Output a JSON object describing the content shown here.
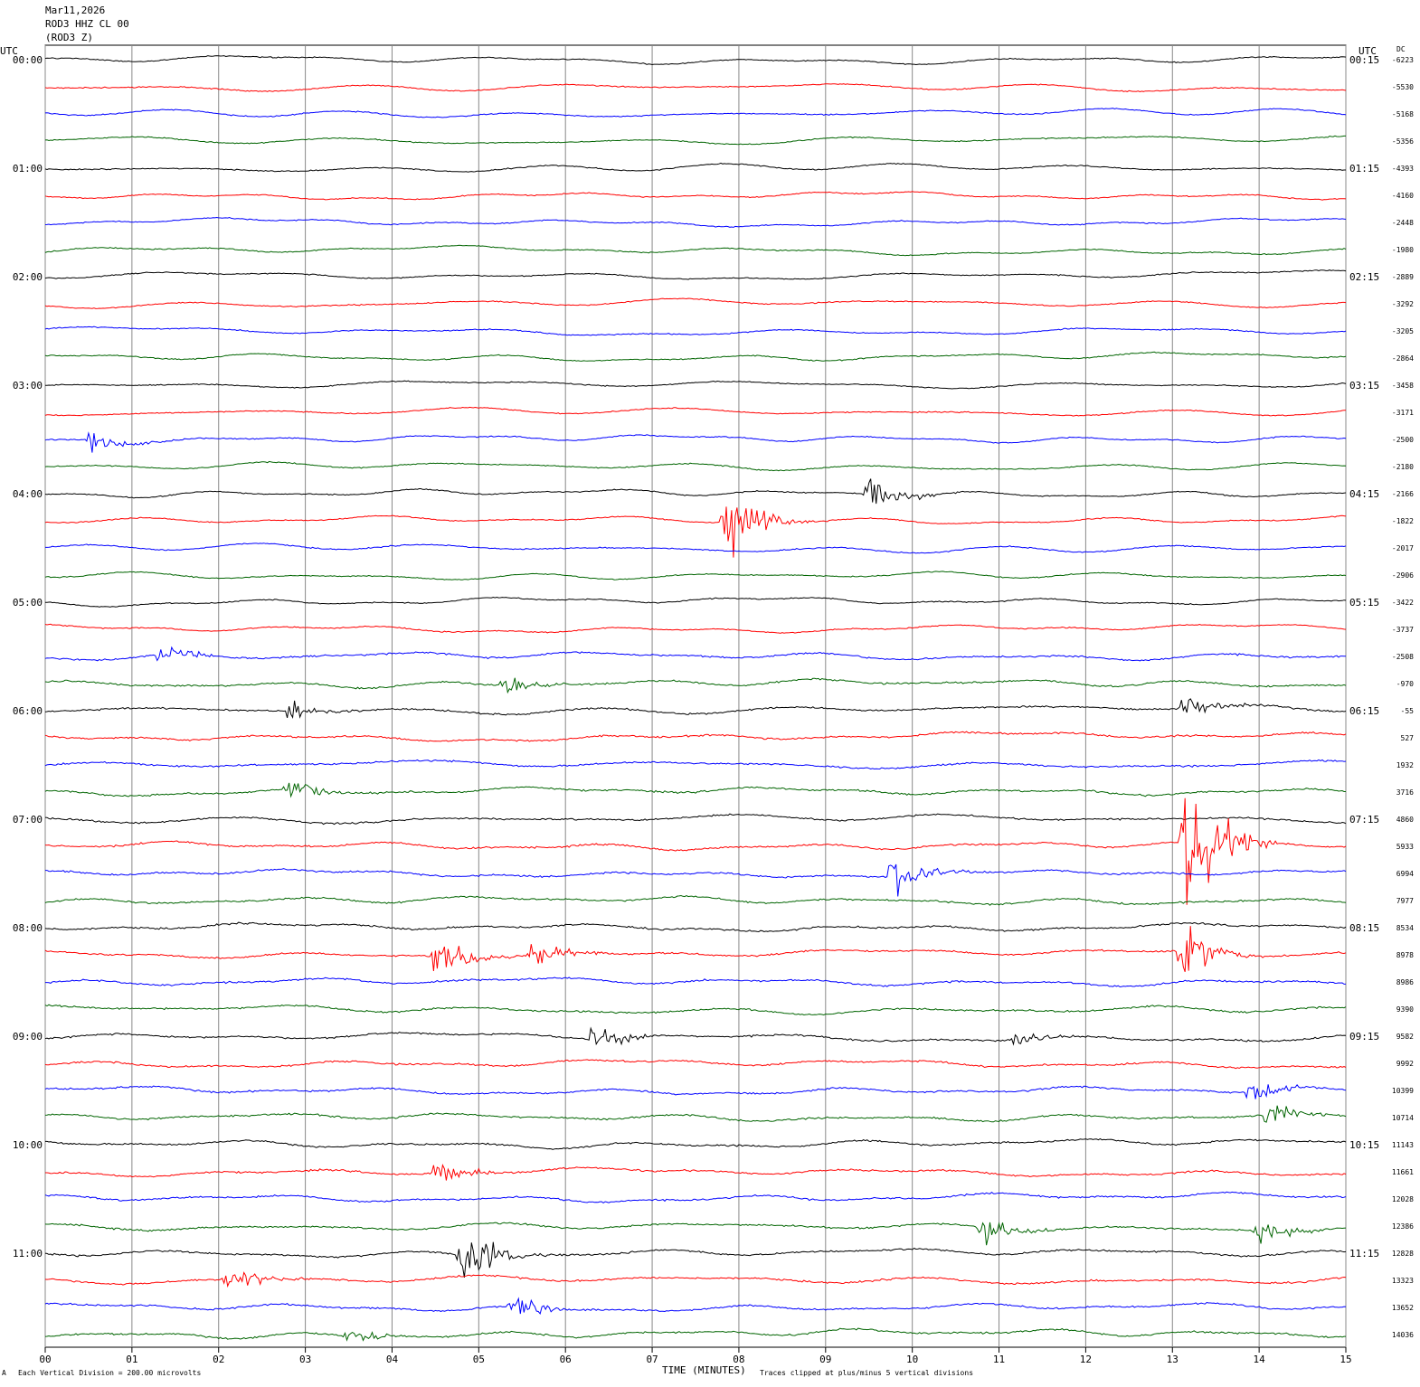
{
  "header": {
    "date": "Mar11,2026",
    "station": "ROD3 HHZ CL 00",
    "component": "(ROD3 Z)"
  },
  "left_axis_title": "UTC",
  "right_axis_title": "UTC",
  "dc_title": "DC",
  "footer": {
    "scale_note": "Each Vertical Division =  200.00 microvolts",
    "clip_note": "Traces clipped at plus/minus 5 vertical divisions",
    "corner_mark": "A"
  },
  "chart_data": {
    "type": "line",
    "title": "",
    "xlabel": "TIME (MINUTES)",
    "ylabel": "",
    "xlim": [
      0,
      15
    ],
    "x_ticks": [
      "00",
      "01",
      "02",
      "03",
      "04",
      "05",
      "06",
      "07",
      "08",
      "09",
      "10",
      "11",
      "12",
      "13",
      "14",
      "15"
    ],
    "grid": "vertical lines every minute",
    "trace_colors": [
      "#000000",
      "#ff0000",
      "#0000ff",
      "#006400"
    ],
    "left_time_labels": [
      "00:00",
      "01:00",
      "02:00",
      "03:00",
      "04:00",
      "05:00",
      "06:00",
      "07:00",
      "08:00",
      "09:00",
      "10:00",
      "11:00"
    ],
    "right_time_labels": [
      "00:15",
      "01:15",
      "02:15",
      "03:15",
      "04:15",
      "05:15",
      "06:15",
      "07:15",
      "08:15",
      "09:15",
      "10:15",
      "11:15"
    ],
    "dc_offsets": [
      "-6223",
      "-5530",
      "-5168",
      "-5356",
      "-4393",
      "-4160",
      "-2448",
      "-1980",
      "-2889",
      "-3292",
      "-3205",
      "-2864",
      "-3458",
      "-3171",
      "-2500",
      "-2180",
      "-2166",
      "-1822",
      "-2017",
      "-2906",
      "-3422",
      "-3737",
      "-2508",
      "-970",
      "-55",
      "527",
      "1932",
      "3716",
      "4860",
      "5933",
      "6994",
      "7977",
      "8534",
      "8978",
      "8986",
      "9390",
      "9582",
      "9992",
      "10399",
      "10714",
      "11143",
      "11661",
      "12028",
      "12386",
      "12828",
      "13323",
      "13652",
      "14036"
    ],
    "events": [
      {
        "trace": 16,
        "minute": 9.5,
        "amplitude": 1.0
      },
      {
        "trace": 17,
        "minute": 7.85,
        "amplitude": 2.3
      },
      {
        "trace": 14,
        "minute": 0.5,
        "amplitude": 0.7
      },
      {
        "trace": 22,
        "minute": 1.3,
        "amplitude": 0.6
      },
      {
        "trace": 23,
        "minute": 5.3,
        "amplitude": 0.6
      },
      {
        "trace": 24,
        "minute": 2.8,
        "amplitude": 0.6
      },
      {
        "trace": 24,
        "minute": 13.1,
        "amplitude": 0.8
      },
      {
        "trace": 27,
        "minute": 2.8,
        "amplitude": 0.7
      },
      {
        "trace": 29,
        "minute": 13.15,
        "amplitude": 5.0
      },
      {
        "trace": 30,
        "minute": 9.75,
        "amplitude": 1.3
      },
      {
        "trace": 33,
        "minute": 4.5,
        "amplitude": 1.4
      },
      {
        "trace": 33,
        "minute": 5.6,
        "amplitude": 0.8
      },
      {
        "trace": 33,
        "minute": 13.1,
        "amplitude": 1.8
      },
      {
        "trace": 36,
        "minute": 6.3,
        "amplitude": 0.8
      },
      {
        "trace": 36,
        "minute": 11.2,
        "amplitude": 0.6
      },
      {
        "trace": 38,
        "minute": 13.9,
        "amplitude": 0.8
      },
      {
        "trace": 39,
        "minute": 14.1,
        "amplitude": 0.8
      },
      {
        "trace": 41,
        "minute": 4.5,
        "amplitude": 0.8
      },
      {
        "trace": 43,
        "minute": 10.8,
        "amplitude": 0.9
      },
      {
        "trace": 43,
        "minute": 14.0,
        "amplitude": 0.7
      },
      {
        "trace": 44,
        "minute": 4.8,
        "amplitude": 2.0
      },
      {
        "trace": 45,
        "minute": 2.1,
        "amplitude": 1.0
      },
      {
        "trace": 46,
        "minute": 5.4,
        "amplitude": 0.8
      },
      {
        "trace": 47,
        "minute": 3.5,
        "amplitude": 0.6
      }
    ]
  }
}
